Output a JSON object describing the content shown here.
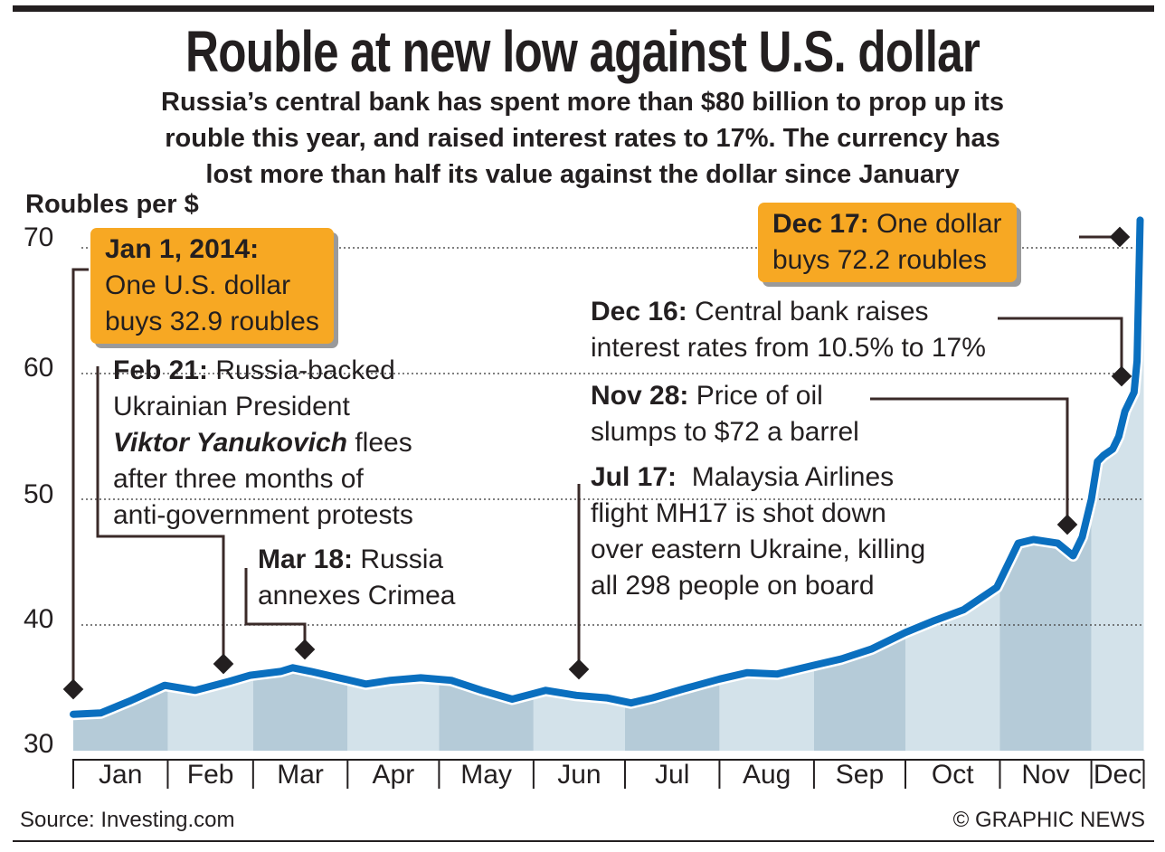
{
  "title": "Rouble at new low against U.S. dollar",
  "subtitle": [
    "Russia’s central bank has spent more than $80 billion to prop up its",
    "rouble this year, and raised interest rates to 17%. The currency has",
    "lost more than half its value against the dollar since January"
  ],
  "footer": {
    "source": "Source: Investing.com",
    "credit": "© GRAPHIC NEWS"
  },
  "colors": {
    "line": "#0a6fbf",
    "box": "#f7a823",
    "band_dark": "#b5cbd8",
    "band_light": "#d3e2ea"
  },
  "chart_data": {
    "type": "line",
    "title": "Rouble at new low against U.S. dollar",
    "ylabel": "Roubles per $",
    "ylim": [
      30,
      72.2
    ],
    "yticks": [
      "30",
      "40",
      "50",
      "60",
      "70"
    ],
    "grid": true,
    "xticks": [
      "Jan",
      "Feb",
      "Mar",
      "Apr",
      "May",
      "Jun",
      "Jul",
      "Aug",
      "Sep",
      "Oct",
      "Nov",
      "Dec"
    ],
    "x": [
      "2014-01-01",
      "2014-01-10",
      "2014-01-20",
      "2014-01-31",
      "2014-02-10",
      "2014-02-21",
      "2014-02-28",
      "2014-03-10",
      "2014-03-14",
      "2014-03-20",
      "2014-03-31",
      "2014-04-07",
      "2014-04-15",
      "2014-04-25",
      "2014-05-05",
      "2014-05-15",
      "2014-05-25",
      "2014-06-05",
      "2014-06-15",
      "2014-06-25",
      "2014-07-03",
      "2014-07-10",
      "2014-07-20",
      "2014-08-01",
      "2014-08-10",
      "2014-08-20",
      "2014-09-01",
      "2014-09-10",
      "2014-09-20",
      "2014-10-01",
      "2014-10-10",
      "2014-10-20",
      "2014-10-31",
      "2014-11-05",
      "2014-11-07",
      "2014-11-12",
      "2014-11-20",
      "2014-11-25",
      "2014-11-28",
      "2014-12-01",
      "2014-12-03",
      "2014-12-05",
      "2014-12-08",
      "2014-12-10",
      "2014-12-12",
      "2014-12-15",
      "2014-12-16",
      "2014-12-17"
    ],
    "values": [
      32.9,
      33.0,
      34.0,
      35.2,
      34.8,
      35.5,
      36.0,
      36.3,
      36.6,
      36.3,
      35.7,
      35.3,
      35.6,
      35.8,
      35.6,
      34.8,
      34.1,
      34.8,
      34.4,
      34.2,
      33.8,
      34.2,
      34.9,
      35.7,
      36.2,
      36.1,
      36.8,
      37.3,
      38.1,
      39.4,
      40.3,
      41.2,
      43.0,
      45.5,
      46.5,
      46.8,
      46.5,
      45.5,
      47.0,
      50.0,
      53.0,
      53.5,
      54.0,
      55.0,
      57.0,
      58.5,
      61.0,
      72.2
    ],
    "annotations": [
      {
        "date": "Jan 1, 2014:",
        "text": [
          "One U.S. dollar",
          "buys 32.9 roubles"
        ],
        "highlight": true
      },
      {
        "date": "Feb 21:",
        "text": [
          "Russia-backed",
          "Ukrainian President",
          "Viktor Yanukovich",
          "flees",
          "after three months of",
          "anti-government protests"
        ]
      },
      {
        "date": "Mar 18:",
        "text": [
          "Russia",
          "annexes Crimea"
        ]
      },
      {
        "date": "Jul 17:",
        "text": [
          "Malaysia Airlines",
          "flight MH17 is shot down",
          "over eastern Ukraine, killing",
          "all 298 people on board"
        ]
      },
      {
        "date": "Nov 28:",
        "text": [
          "Price of oil",
          "slumps to $72 a barrel"
        ]
      },
      {
        "date": "Dec 16:",
        "text": [
          "Central bank raises",
          "interest rates from 10.5% to 17%"
        ]
      },
      {
        "date": "Dec 17:",
        "text": [
          "One dollar",
          "buys 72.2 roubles"
        ],
        "highlight": true
      }
    ]
  }
}
